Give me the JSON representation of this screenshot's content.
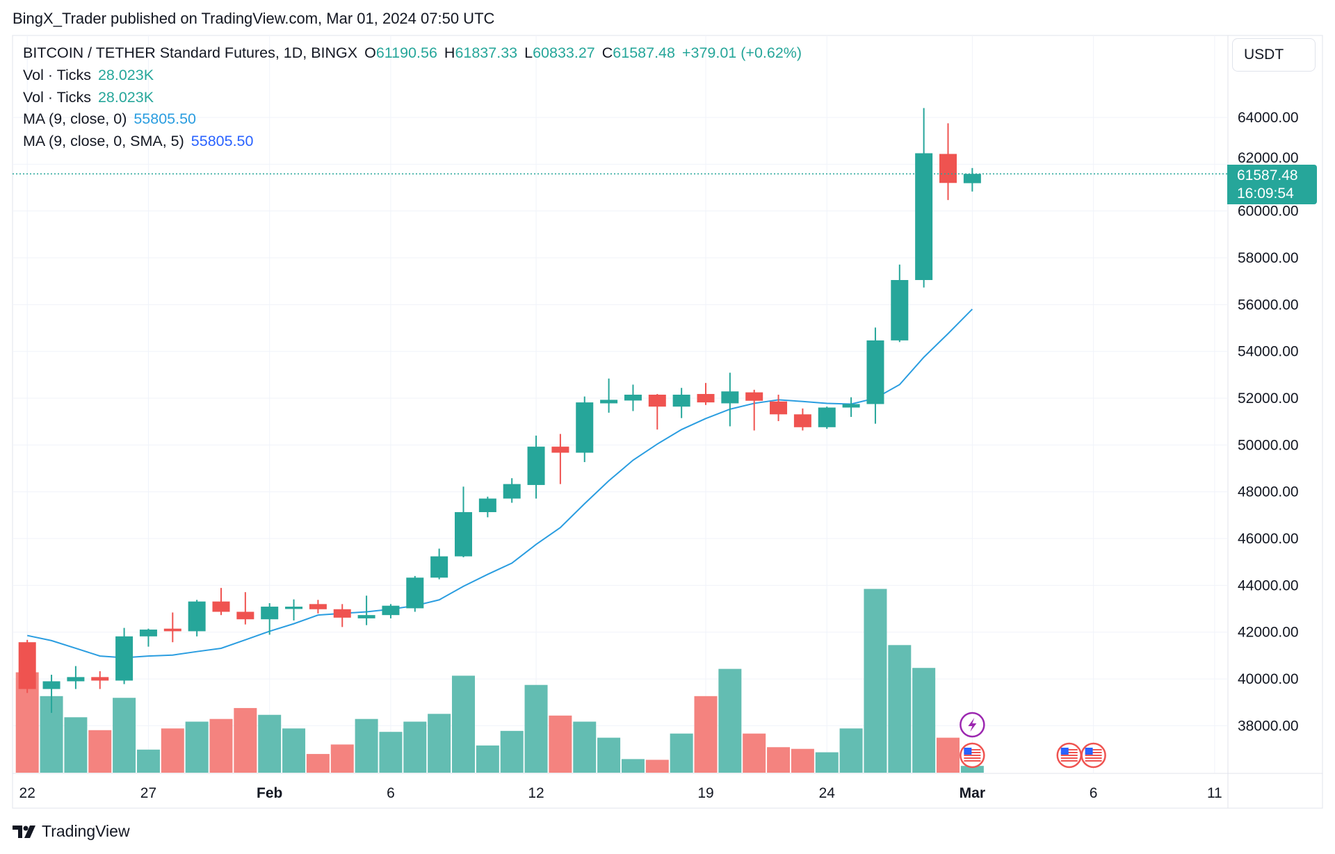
{
  "publish_line": "BingX_Trader published on TradingView.com, Mar 01, 2024 07:50 UTC",
  "legend": {
    "symbol": "BITCOIN / TETHER Standard Futures, 1D, BINGX",
    "o_label": "O",
    "o": "61190.56",
    "h_label": "H",
    "h": "61837.33",
    "l_label": "L",
    "l": "60833.27",
    "c_label": "C",
    "c": "61587.48",
    "change": "+379.01 (+0.62%)",
    "vol1_label": "Vol · Ticks",
    "vol1": "28.023K",
    "vol2_label": "Vol · Ticks",
    "vol2": "28.023K",
    "ma1_label": "MA (9, close, 0)",
    "ma1": "55805.50",
    "ma2_label": "MA (9, close, 0, SMA, 5)",
    "ma2": "55805.50"
  },
  "price_axis": {
    "currency": "USDT",
    "last_price": "61587.48",
    "countdown": "16:09:54"
  },
  "footer": {
    "brand": "TradingView"
  },
  "colors": {
    "up": "#26a69a",
    "down": "#ef5350",
    "vol_up": "#63bdb2",
    "vol_down": "#f4837f",
    "ma": "#2a9de0",
    "last_price": "#26a69a"
  },
  "events": [
    {
      "type": "flash-icon",
      "date": "Mar 1"
    },
    {
      "type": "us-flag-icon",
      "date": "Mar 1"
    },
    {
      "type": "us-flag-icon",
      "date": "Mar 5"
    },
    {
      "type": "us-flag-icon",
      "date": "Mar 6"
    }
  ],
  "chart_data": {
    "type": "candlestick",
    "grid": true,
    "ylim": [
      36000,
      65500
    ],
    "y_ticks": [
      "38000.00",
      "40000.00",
      "42000.00",
      "44000.00",
      "46000.00",
      "48000.00",
      "50000.00",
      "52000.00",
      "54000.00",
      "56000.00",
      "58000.00",
      "60000.00",
      "62000.00",
      "64000.00"
    ],
    "x_ticks": [
      {
        "label": "22",
        "day_index": 0,
        "bold": false
      },
      {
        "label": "27",
        "day_index": 5,
        "bold": false
      },
      {
        "label": "Feb",
        "day_index": 10,
        "bold": true
      },
      {
        "label": "6",
        "day_index": 15,
        "bold": false
      },
      {
        "label": "12",
        "day_index": 21,
        "bold": false
      },
      {
        "label": "19",
        "day_index": 28,
        "bold": false
      },
      {
        "label": "24",
        "day_index": 33,
        "bold": false
      },
      {
        "label": "Mar",
        "day_index": 39,
        "bold": true
      },
      {
        "label": "6",
        "day_index": 44,
        "bold": false
      },
      {
        "label": "11",
        "day_index": 49,
        "bold": false
      }
    ],
    "first_date": "2024-01-22",
    "ohlc": [
      [
        41570,
        41670,
        39400,
        39570
      ],
      [
        39570,
        40180,
        38550,
        39900
      ],
      [
        39900,
        40550,
        39570,
        40080
      ],
      [
        40080,
        40330,
        39570,
        39930
      ],
      [
        39930,
        42180,
        39780,
        41820
      ],
      [
        41820,
        42150,
        41380,
        42110
      ],
      [
        42150,
        42840,
        41570,
        42040
      ],
      [
        42040,
        43380,
        41820,
        43310
      ],
      [
        43310,
        43890,
        42730,
        42870
      ],
      [
        42870,
        43710,
        42330,
        42550
      ],
      [
        42550,
        43240,
        41890,
        43090
      ],
      [
        42990,
        43400,
        42500,
        43090
      ],
      [
        43200,
        43380,
        42800,
        42980
      ],
      [
        42980,
        43200,
        42220,
        42620
      ],
      [
        42590,
        43560,
        42300,
        42730
      ],
      [
        42730,
        43200,
        42590,
        43130
      ],
      [
        43020,
        44400,
        42870,
        44330
      ],
      [
        44330,
        45570,
        44260,
        45240
      ],
      [
        45240,
        48220,
        45200,
        47130
      ],
      [
        47130,
        47790,
        46910,
        47710
      ],
      [
        47710,
        48580,
        47530,
        48330
      ],
      [
        48290,
        50400,
        47710,
        49930
      ],
      [
        49930,
        50470,
        48330,
        49670
      ],
      [
        49670,
        52070,
        49270,
        51820
      ],
      [
        51780,
        52840,
        51380,
        51930
      ],
      [
        51900,
        52580,
        51450,
        52150
      ],
      [
        52150,
        52180,
        50660,
        51640
      ],
      [
        51640,
        52440,
        51150,
        52150
      ],
      [
        52180,
        52650,
        51710,
        51820
      ],
      [
        51780,
        53090,
        50800,
        52290
      ],
      [
        52250,
        52360,
        50620,
        51890
      ],
      [
        51860,
        52150,
        51020,
        51310
      ],
      [
        51310,
        51560,
        50620,
        50760
      ],
      [
        50760,
        51640,
        50690,
        51600
      ],
      [
        51600,
        52040,
        51200,
        51750
      ],
      [
        51750,
        55020,
        50910,
        54470
      ],
      [
        54470,
        57710,
        54400,
        57050
      ],
      [
        57050,
        64400,
        56730,
        62470
      ],
      [
        62440,
        63750,
        60470,
        61200
      ],
      [
        61190.56,
        61837.33,
        60833.27,
        61587.48
      ]
    ],
    "volume_k": [
      413,
      315,
      228,
      175,
      308,
      95,
      182,
      210,
      221,
      266,
      238,
      182,
      77,
      116,
      221,
      168,
      210,
      242,
      399,
      112,
      172,
      361,
      235,
      210,
      144,
      56,
      53,
      161,
      315,
      427,
      161,
      105,
      98,
      84,
      182,
      756,
      525,
      431,
      144,
      28.023
    ],
    "ma9": [
      41857,
      41640,
      41310,
      40980,
      40910,
      40980,
      41020,
      41170,
      41310,
      41670,
      42040,
      42360,
      42730,
      42800,
      42870,
      42980,
      43130,
      43380,
      43960,
      44470,
      44950,
      45750,
      46470,
      47490,
      48470,
      49350,
      50040,
      50660,
      51130,
      51530,
      51780,
      51930,
      51860,
      51780,
      51750,
      52000,
      52580,
      53750,
      54760,
      55805.5
    ],
    "last_price": 61587.48
  }
}
